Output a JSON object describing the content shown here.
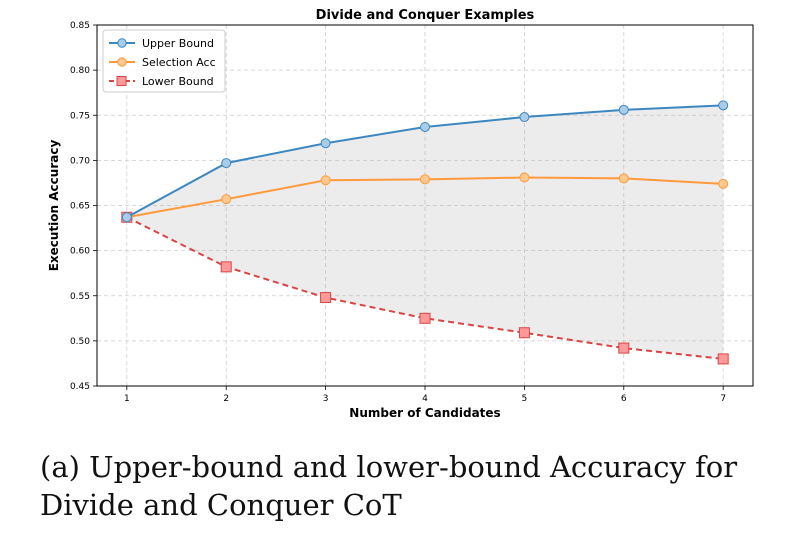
{
  "chart_data": {
    "type": "line",
    "title": "Divide and Conquer Examples",
    "xlabel": "Number of Candidates",
    "ylabel": "Execution Accuracy",
    "x": [
      1,
      2,
      3,
      4,
      5,
      6,
      7
    ],
    "xlim": [
      0.7,
      7.3
    ],
    "ylim": [
      0.45,
      0.85
    ],
    "xticks": [
      "1",
      "2",
      "3",
      "4",
      "5",
      "6",
      "7"
    ],
    "yticks": [
      "0.45",
      "0.50",
      "0.55",
      "0.60",
      "0.65",
      "0.70",
      "0.75",
      "0.80",
      "0.85"
    ],
    "grid": true,
    "legend_position": "top-left",
    "fill_between": [
      "Upper Bound",
      "Lower Bound"
    ],
    "series": [
      {
        "name": "Upper Bound",
        "color": "#3d87c0",
        "marker": "circle",
        "dash": "solid",
        "values": [
          0.637,
          0.697,
          0.719,
          0.737,
          0.748,
          0.756,
          0.761
        ]
      },
      {
        "name": "Selection Acc",
        "color": "#ff9a3c",
        "marker": "circle",
        "dash": "solid",
        "values": [
          0.637,
          0.657,
          0.678,
          0.679,
          0.681,
          0.68,
          0.674
        ]
      },
      {
        "name": "Lower Bound",
        "color": "#d94545",
        "marker": "square",
        "dash": "dashed",
        "values": [
          0.637,
          0.582,
          0.548,
          0.525,
          0.509,
          0.492,
          0.48
        ]
      }
    ]
  },
  "caption": {
    "line1": "(a) Upper-bound and lower-bound Accuracy for",
    "line2": "Divide and Conquer CoT"
  }
}
